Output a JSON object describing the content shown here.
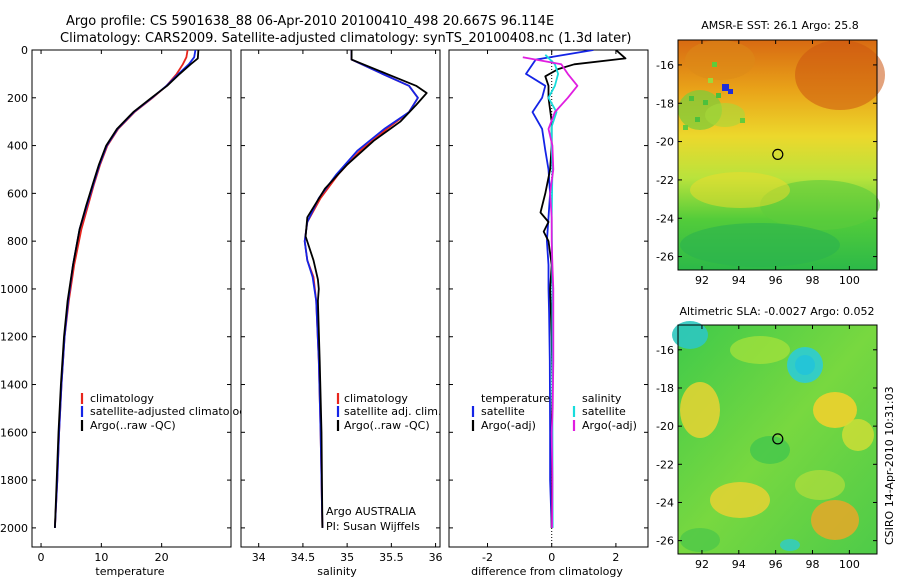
{
  "header": {
    "line1": "Argo profile: CS 5901638_88 06-Apr-2010 20100410_498 20.667S 96.114E",
    "line2": "Climatology: CARS2009. Satellite-adjusted climatology: synTS_20100408.nc (1.3d later)"
  },
  "chart_data": [
    {
      "type": "line",
      "xlabel": "temperature",
      "ylabel": "",
      "xlim": [
        -1.5,
        31.5
      ],
      "ylim": [
        2080,
        0
      ],
      "xticks": [
        "0",
        "10",
        "20"
      ],
      "xtick_values": [
        0,
        10,
        20
      ],
      "yticks": [
        "0",
        "200",
        "400",
        "600",
        "800",
        "1000",
        "1200",
        "1400",
        "1600",
        "1800",
        "2000"
      ],
      "ytick_values": [
        0,
        200,
        400,
        600,
        800,
        1000,
        1200,
        1400,
        1600,
        1800,
        2000
      ],
      "legend": [
        "climatology",
        "satellite-adjusted climatology",
        "Argo(..raw -QC)"
      ],
      "colors": {
        "climatology": "#e8251c",
        "satellite": "#1424e6",
        "argo": "#000000"
      },
      "series": [
        {
          "name": "climatology",
          "points": [
            [
              24.3,
              0
            ],
            [
              24.1,
              30
            ],
            [
              23.5,
              60
            ],
            [
              22.5,
              100
            ],
            [
              20.8,
              150
            ],
            [
              18.5,
              200
            ],
            [
              15.5,
              260
            ],
            [
              12.8,
              330
            ],
            [
              11.0,
              400
            ],
            [
              9.8,
              480
            ],
            [
              8.8,
              560
            ],
            [
              7.8,
              650
            ],
            [
              6.7,
              750
            ],
            [
              5.5,
              900
            ],
            [
              4.6,
              1050
            ],
            [
              3.9,
              1200
            ],
            [
              3.4,
              1400
            ],
            [
              3.0,
              1600
            ],
            [
              2.7,
              1800
            ],
            [
              2.3,
              2000
            ]
          ]
        },
        {
          "name": "satellite-adjusted climatology",
          "points": [
            [
              25.6,
              0
            ],
            [
              25.4,
              30
            ],
            [
              24.5,
              60
            ],
            [
              22.8,
              100
            ],
            [
              20.8,
              150
            ],
            [
              18.4,
              200
            ],
            [
              15.4,
              260
            ],
            [
              12.7,
              330
            ],
            [
              10.9,
              400
            ],
            [
              9.7,
              480
            ],
            [
              8.7,
              560
            ],
            [
              7.6,
              650
            ],
            [
              6.4,
              750
            ],
            [
              5.3,
              900
            ],
            [
              4.5,
              1050
            ],
            [
              3.9,
              1200
            ],
            [
              3.4,
              1400
            ],
            [
              3.0,
              1600
            ],
            [
              2.7,
              1800
            ],
            [
              2.3,
              2000
            ]
          ]
        },
        {
          "name": "Argo(..raw -QC)",
          "points": [
            [
              26.1,
              0
            ],
            [
              26.0,
              35
            ],
            [
              24.8,
              60
            ],
            [
              23.0,
              100
            ],
            [
              20.9,
              150
            ],
            [
              18.3,
              200
            ],
            [
              15.3,
              260
            ],
            [
              12.6,
              330
            ],
            [
              10.8,
              400
            ],
            [
              9.6,
              480
            ],
            [
              8.6,
              560
            ],
            [
              7.5,
              650
            ],
            [
              6.4,
              750
            ],
            [
              5.3,
              900
            ],
            [
              4.4,
              1050
            ],
            [
              3.8,
              1200
            ],
            [
              3.3,
              1400
            ],
            [
              2.9,
              1600
            ],
            [
              2.6,
              1800
            ],
            [
              2.3,
              2000
            ]
          ]
        }
      ]
    },
    {
      "type": "line",
      "xlabel": "salinity",
      "xlim": [
        33.8,
        36.05
      ],
      "ylim": [
        2080,
        0
      ],
      "xticks": [
        "34",
        "34.5",
        "35",
        "35.5",
        "36"
      ],
      "xtick_values": [
        34,
        34.5,
        35,
        35.5,
        36
      ],
      "legend": [
        "climatology",
        "satellite adj. clim.",
        "Argo(..raw -QC)"
      ],
      "annotations": [
        "Argo AUSTRALIA",
        "PI: Susan Wijffels"
      ],
      "series": [
        {
          "name": "climatology",
          "points": [
            [
              35.05,
              0
            ],
            [
              35.05,
              40
            ],
            [
              35.4,
              100
            ],
            [
              35.7,
              150
            ],
            [
              35.8,
              200
            ],
            [
              35.7,
              260
            ],
            [
              35.45,
              330
            ],
            [
              35.15,
              420
            ],
            [
              34.9,
              520
            ],
            [
              34.7,
              620
            ],
            [
              34.55,
              720
            ],
            [
              34.52,
              800
            ],
            [
              34.55,
              880
            ],
            [
              34.62,
              950
            ],
            [
              34.65,
              1050
            ],
            [
              34.68,
              1300
            ],
            [
              34.7,
              1600
            ],
            [
              34.72,
              2000
            ]
          ]
        },
        {
          "name": "satellite adj. clim.",
          "points": [
            [
              35.05,
              0
            ],
            [
              35.05,
              40
            ],
            [
              35.4,
              100
            ],
            [
              35.7,
              150
            ],
            [
              35.8,
              200
            ],
            [
              35.7,
              260
            ],
            [
              35.42,
              330
            ],
            [
              35.12,
              420
            ],
            [
              34.88,
              520
            ],
            [
              34.68,
              620
            ],
            [
              34.55,
              720
            ],
            [
              34.52,
              800
            ],
            [
              34.55,
              880
            ],
            [
              34.61,
              950
            ],
            [
              34.65,
              1050
            ],
            [
              34.68,
              1300
            ],
            [
              34.7,
              1600
            ],
            [
              34.72,
              2000
            ]
          ]
        },
        {
          "name": "Argo(..raw -QC)",
          "points": [
            [
              35.05,
              0
            ],
            [
              35.05,
              40
            ],
            [
              35.45,
              100
            ],
            [
              35.78,
              150
            ],
            [
              35.9,
              180
            ],
            [
              35.78,
              230
            ],
            [
              35.6,
              300
            ],
            [
              35.3,
              380
            ],
            [
              35.0,
              480
            ],
            [
              34.75,
              580
            ],
            [
              34.55,
              700
            ],
            [
              34.53,
              780
            ],
            [
              34.62,
              880
            ],
            [
              34.67,
              960
            ],
            [
              34.68,
              1000
            ],
            [
              34.67,
              1050
            ],
            [
              34.69,
              1300
            ],
            [
              34.71,
              1600
            ],
            [
              34.72,
              2000
            ]
          ]
        }
      ]
    },
    {
      "type": "line",
      "xlabel": "difference from climatology",
      "xlim": [
        -3.2,
        3.0
      ],
      "ylim": [
        2080,
        0
      ],
      "xticks": [
        "-2",
        "0",
        "2"
      ],
      "xtick_values": [
        -2,
        0,
        2
      ],
      "legend": [
        "temperature",
        "satellite",
        "Argo(-adj)",
        "salinity",
        "satellite",
        "Argo(-adj)"
      ],
      "series": [
        {
          "name": "temperature satellite",
          "color": "#1424e6",
          "points": [
            [
              1.3,
              0
            ],
            [
              -0.5,
              40
            ],
            [
              -0.8,
              100
            ],
            [
              -0.2,
              150
            ],
            [
              -0.3,
              200
            ],
            [
              -0.6,
              260
            ],
            [
              -0.3,
              330
            ],
            [
              -0.2,
              420
            ],
            [
              -0.1,
              500
            ],
            [
              -0.05,
              600
            ],
            [
              -0.1,
              700
            ],
            [
              -0.15,
              800
            ],
            [
              -0.1,
              900
            ],
            [
              -0.1,
              1000
            ],
            [
              -0.08,
              1100
            ],
            [
              -0.06,
              1300
            ],
            [
              -0.05,
              1600
            ],
            [
              -0.05,
              1800
            ],
            [
              0,
              2000
            ]
          ]
        },
        {
          "name": "temperature Argo(-adj)",
          "color": "#000000",
          "points": [
            [
              2.0,
              0
            ],
            [
              2.3,
              35
            ],
            [
              0.7,
              60
            ],
            [
              0.2,
              80
            ],
            [
              -0.2,
              110
            ],
            [
              -0.1,
              150
            ],
            [
              -0.1,
              200
            ],
            [
              0,
              300
            ],
            [
              0,
              400
            ],
            [
              -0.05,
              500
            ],
            [
              -0.2,
              600
            ],
            [
              -0.35,
              680
            ],
            [
              -0.1,
              720
            ],
            [
              -0.25,
              760
            ],
            [
              -0.1,
              800
            ],
            [
              0,
              900
            ],
            [
              -0.05,
              1000
            ],
            [
              0,
              1200
            ],
            [
              0.02,
              1400
            ],
            [
              0,
              1600
            ],
            [
              0.01,
              1800
            ],
            [
              0,
              2000
            ]
          ]
        },
        {
          "name": "salinity satellite",
          "color": "#18dcdc",
          "points": [
            [
              -0.2,
              20
            ],
            [
              0.1,
              60
            ],
            [
              0.2,
              100
            ],
            [
              0.1,
              150
            ],
            [
              -0.1,
              200
            ],
            [
              0.15,
              260
            ],
            [
              0,
              320
            ],
            [
              0,
              400
            ],
            [
              0.02,
              500
            ],
            [
              0,
              700
            ],
            [
              0.02,
              1000
            ],
            [
              0.02,
              1500
            ],
            [
              0.03,
              2000
            ]
          ]
        },
        {
          "name": "salinity Argo(-adj)",
          "color": "#e01ee0",
          "points": [
            [
              -0.9,
              30
            ],
            [
              0.3,
              60
            ],
            [
              0.5,
              100
            ],
            [
              0.8,
              150
            ],
            [
              0.5,
              200
            ],
            [
              0.1,
              260
            ],
            [
              -0.1,
              330
            ],
            [
              0.02,
              400
            ],
            [
              0.05,
              500
            ],
            [
              -0.05,
              600
            ],
            [
              0,
              700
            ],
            [
              0,
              800
            ],
            [
              0.02,
              900
            ],
            [
              0.05,
              1000
            ],
            [
              0.05,
              1200
            ],
            [
              0.05,
              1300
            ],
            [
              0.03,
              1500
            ],
            [
              0,
              1600
            ],
            [
              0.02,
              1800
            ],
            [
              0.01,
              2000
            ]
          ]
        }
      ]
    },
    {
      "type": "heatmap",
      "title": "AMSR-E SST: 26.1 Argo: 25.8",
      "xlim": [
        90.7,
        101.5
      ],
      "ylim": [
        -26.7,
        -14.7
      ],
      "xticks": [
        "92",
        "94",
        "96",
        "98",
        "100"
      ],
      "xtick_values": [
        92,
        94,
        96,
        98,
        100
      ],
      "yticks": [
        "-16",
        "-18",
        "-20",
        "-22",
        "-24",
        "-26"
      ],
      "ytick_values": [
        -16,
        -18,
        -20,
        -22,
        -24,
        -26
      ],
      "marker": {
        "lon": 96.114,
        "lat": -20.667
      }
    },
    {
      "type": "heatmap",
      "title": "Altimetric SLA: -0.0027 Argo: 0.052",
      "xlim": [
        90.7,
        101.5
      ],
      "ylim": [
        -26.7,
        -14.7
      ],
      "xticks": [
        "92",
        "94",
        "96",
        "98",
        "100"
      ],
      "xtick_values": [
        92,
        94,
        96,
        98,
        100
      ],
      "yticks": [
        "-16",
        "-18",
        "-20",
        "-22",
        "-24",
        "-26"
      ],
      "ytick_values": [
        -16,
        -18,
        -20,
        -22,
        -24,
        -26
      ],
      "marker": {
        "lon": 96.114,
        "lat": -20.667
      }
    }
  ],
  "footer": {
    "stamp": "CSIRO 14-Apr-2010 10:31:03"
  }
}
